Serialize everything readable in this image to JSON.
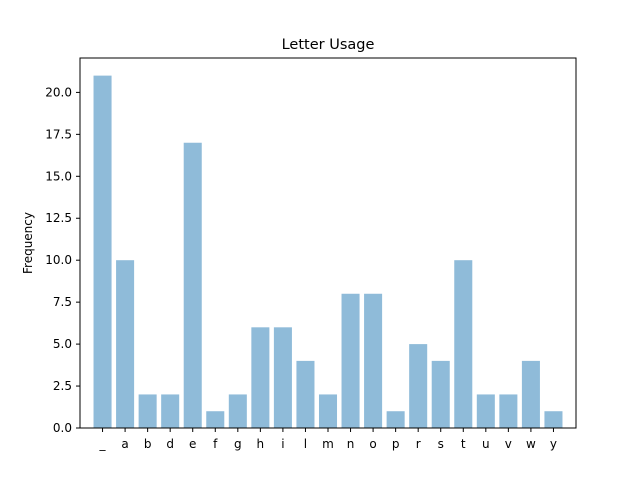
{
  "chart_data": {
    "type": "bar",
    "title": "Letter Usage",
    "xlabel": "",
    "ylabel": "Frequency",
    "categories": [
      "_",
      "a",
      "b",
      "d",
      "e",
      "f",
      "g",
      "h",
      "i",
      "l",
      "m",
      "n",
      "o",
      "p",
      "r",
      "s",
      "t",
      "u",
      "v",
      "w",
      "y"
    ],
    "values": [
      21,
      10,
      2,
      2,
      17,
      1,
      2,
      6,
      6,
      4,
      2,
      8,
      8,
      1,
      5,
      4,
      10,
      2,
      2,
      4,
      1
    ],
    "ylim": [
      0,
      22.05
    ],
    "yticks": [
      0,
      2.5,
      5,
      7.5,
      10,
      12.5,
      15,
      17.5,
      20
    ],
    "ytick_labels": [
      "0.0",
      "2.5",
      "5.0",
      "7.5",
      "10.0",
      "12.5",
      "15.0",
      "17.5",
      "20.0"
    ],
    "grid": false,
    "bar_color": "#8fbbd9"
  }
}
